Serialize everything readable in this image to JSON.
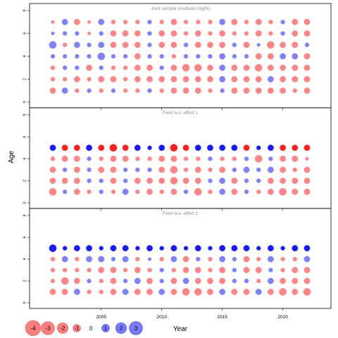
{
  "figure": {
    "ylabel": "Age",
    "xlabel": "Year",
    "x_ticks": [
      "2005",
      "2010",
      "2015",
      "2020"
    ],
    "y_ticks": [
      "0",
      "2",
      "4",
      "6",
      "8"
    ]
  },
  "colors": {
    "negative": "#ff7f7f",
    "positive": "#7a7aff",
    "negative_strong": "#ff2020",
    "positive_strong": "#1a1aff",
    "frame": "#000000",
    "title": "#8c8c8c"
  },
  "legend": {
    "items": [
      "-4",
      "-3",
      "-2",
      "-1",
      "0",
      "1",
      "2",
      "3"
    ]
  },
  "chart_data": [
    {
      "type": "scatter",
      "title": "Joint sample residuals log(N)",
      "xlabel": "Year",
      "ylabel": "Age",
      "ylim": [
        0,
        8
      ],
      "years": [
        2001,
        2002,
        2003,
        2004,
        2005,
        2006,
        2007,
        2008,
        2009,
        2010,
        2011,
        2012,
        2013,
        2014,
        2015,
        2016,
        2017,
        2018,
        2019,
        2020,
        2021,
        2022
      ],
      "ages": [
        1,
        2,
        3,
        4,
        5,
        6,
        7
      ],
      "residuals": [
        [
          -1.0,
          1.0,
          -0.5,
          0.5,
          -0.5,
          0.5,
          -0.5,
          -0.5,
          0.5,
          -0.5,
          -1.0,
          -1.0,
          -1.0,
          -0.5,
          0.5,
          -1.0,
          -1.0,
          -1.0,
          -1.0,
          -1.0,
          -0.5,
          -1.0
        ],
        [
          -0.5,
          -0.5,
          -1.0,
          -0.5,
          -1.0,
          -1.0,
          -0.5,
          -1.0,
          -1.0,
          -1.0,
          -1.0,
          -1.0,
          -1.0,
          -1.0,
          1.0,
          -1.0,
          -1.0,
          -1.0,
          1.0,
          -1.0,
          -1.0,
          -1.0
        ],
        [
          -0.5,
          0.5,
          0.5,
          -1.0,
          0.5,
          -0.5,
          -0.5,
          -1.0,
          -1.0,
          0.5,
          -1.0,
          -1.5,
          -1.5,
          -1.0,
          1.0,
          -1.0,
          -1.0,
          -1.5,
          -1.0,
          -1.0,
          -1.0,
          -1.0
        ],
        [
          0.5,
          0.5,
          0.5,
          0.5,
          1.5,
          0.5,
          0.5,
          -1.0,
          0.5,
          0.5,
          -0.5,
          0.5,
          0.5,
          0.5,
          1.0,
          0.5,
          0.5,
          -1.0,
          -1.0,
          1.0,
          1.0,
          -1.0
        ],
        [
          1.5,
          -0.5,
          1.0,
          0.5,
          1.0,
          -1.0,
          -1.0,
          -1.0,
          0.5,
          -1.0,
          -1.0,
          0.5,
          -1.0,
          -1.0,
          -1.0,
          0.5,
          -1.0,
          0.3,
          -1.5,
          -1.0,
          -1.0,
          0.5
        ],
        [
          0.3,
          0.5,
          0.5,
          -0.3,
          0.5,
          -1.0,
          -1.0,
          -1.0,
          0.5,
          -1.0,
          -1.0,
          -0.5,
          -1.0,
          -0.5,
          -1.0,
          -0.5,
          -0.5,
          -1.0,
          -0.5,
          0.5,
          -1.0,
          -1.0
        ],
        [
          -0.3,
          1.0,
          -1.0,
          -0.3,
          1.0,
          -0.5,
          -0.5,
          -0.5,
          0.5,
          -0.5,
          -1.0,
          -0.5,
          -0.5,
          -0.5,
          1.0,
          -1.0,
          -0.5,
          -1.0,
          -0.5,
          0.5,
          -1.0,
          -1.0
        ]
      ]
    },
    {
      "type": "scatter",
      "title": "Fleet w.o. effort 1",
      "xlabel": "Year",
      "ylabel": "Age",
      "ylim": [
        0,
        8
      ],
      "years": [
        2001,
        2002,
        2003,
        2004,
        2005,
        2006,
        2007,
        2008,
        2009,
        2010,
        2011,
        2012,
        2013,
        2014,
        2015,
        2016,
        2017,
        2018,
        2019,
        2020,
        2021,
        2022
      ],
      "ages": [
        1,
        2,
        3,
        4,
        5
      ],
      "residuals": [
        [
          -1.5,
          0.5,
          -1.0,
          -0.5,
          0.5,
          -0.5,
          1.0,
          -0.5,
          -1.0,
          -0.5,
          -1.0,
          0.5,
          -1.5,
          -0.5,
          1.0,
          -1.0,
          0.5,
          -0.5,
          -1.0,
          -1.5,
          -1.0,
          -1.0
        ],
        [
          -1.0,
          -1.0,
          -1.0,
          0.5,
          0.5,
          -1.0,
          0.5,
          -1.0,
          -1.0,
          -1.0,
          -1.5,
          -1.0,
          -1.0,
          0.5,
          1.0,
          -1.0,
          0.5,
          0.5,
          -1.0,
          -1.0,
          -1.0,
          -1.0
        ],
        [
          -1.0,
          0.5,
          -1.0,
          0.5,
          -1.0,
          -1.0,
          0.5,
          0.5,
          0.5,
          -1.0,
          -1.5,
          -0.5,
          -1.0,
          -0.5,
          -1.0,
          0.5,
          1.0,
          0.5,
          1.0,
          -1.0,
          -0.5,
          -1.0
        ],
        [
          -0.5,
          -1.0,
          -1.0,
          0.5,
          -0.5,
          -1.0,
          -1.0,
          -0.5,
          -0.5,
          -1.0,
          -1.0,
          -0.5,
          -0.5,
          0.5,
          -0.5,
          -0.5,
          0.5,
          -1.5,
          0.5,
          -1.0,
          -1.0,
          -0.3
        ],
        [
          1.0,
          -1.0,
          -1.0,
          1.0,
          -1.0,
          -1.5,
          -1.0,
          1.0,
          0.5,
          1.0,
          -1.5,
          -1.0,
          1.0,
          1.0,
          1.0,
          1.0,
          -1.0,
          0.5,
          1.0,
          -1.0,
          -1.0,
          -1.0
        ]
      ]
    },
    {
      "type": "scatter",
      "title": "Fleet w.o. effort 2",
      "xlabel": "Year",
      "ylabel": "Age",
      "ylim": [
        0,
        8
      ],
      "years": [
        2001,
        2002,
        2003,
        2004,
        2005,
        2006,
        2007,
        2008,
        2009,
        2010,
        2011,
        2012,
        2013,
        2014,
        2015,
        2016,
        2017,
        2018,
        2019,
        2020,
        2021,
        2022
      ],
      "ages": [
        1,
        2,
        3,
        4,
        5
      ],
      "residuals": [
        [
          -1.0,
          -1.0,
          1.0,
          -0.5,
          -0.5,
          -1.0,
          1.0,
          -1.0,
          -1.0,
          1.0,
          -1.0,
          -1.5,
          -1.5,
          -1.0,
          1.0,
          -1.0,
          -1.0,
          1.0,
          -1.0,
          -1.5,
          -1.0,
          -1.5
        ],
        [
          -0.5,
          -1.5,
          -1.0,
          0.5,
          -0.5,
          -1.0,
          0.5,
          1.0,
          -1.0,
          0.5,
          -1.0,
          1.0,
          -1.0,
          -1.0,
          -1.0,
          0.5,
          0.5,
          -0.5,
          1.0,
          -1.0,
          -1.0,
          -1.0
        ],
        [
          -0.5,
          -0.5,
          -0.5,
          -0.5,
          -1.0,
          -1.0,
          -0.5,
          -1.0,
          -0.5,
          0.5,
          -0.5,
          -1.0,
          -1.0,
          -0.5,
          -1.0,
          0.5,
          -1.0,
          -1.0,
          0.5,
          -0.5,
          -1.0,
          -1.0
        ],
        [
          -0.5,
          1.0,
          -0.5,
          1.0,
          1.0,
          0.5,
          1.0,
          -0.5,
          0.3,
          -0.5,
          1.0,
          -1.0,
          0.5,
          -0.5,
          1.0,
          0.5,
          -1.0,
          -0.5,
          1.0,
          -0.5,
          -0.5,
          1.0
        ],
        [
          1.5,
          0.5,
          1.0,
          1.0,
          0.5,
          1.0,
          1.0,
          0.5,
          1.0,
          0.5,
          1.0,
          0.5,
          1.0,
          0.5,
          1.0,
          1.0,
          1.0,
          0.5,
          1.0,
          0.5,
          1.0,
          1.0
        ]
      ]
    }
  ]
}
